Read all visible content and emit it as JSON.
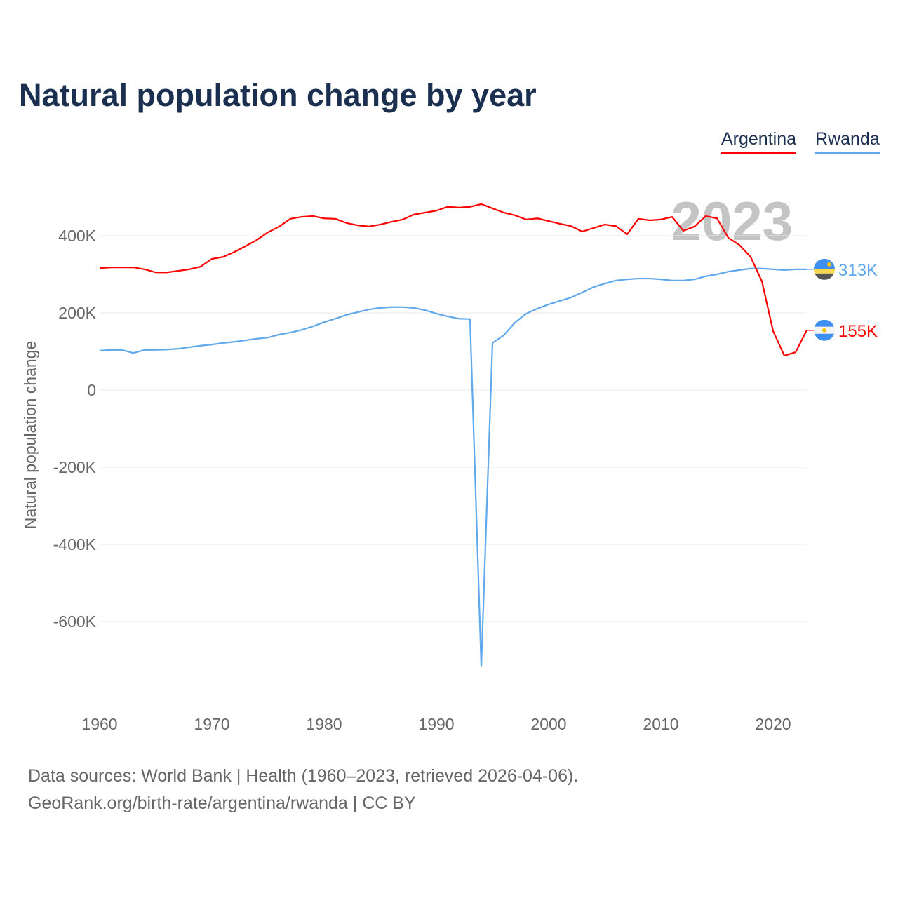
{
  "title": "Natural population change by year",
  "footer": {
    "line1": "Data sources: World Bank | Health (1960–2023, retrieved 2026-04-06).",
    "line2": "GeoRank.org/birth-rate/argentina/rwanda | CC BY"
  },
  "chart_data": {
    "type": "line",
    "title": "Natural population change by year",
    "xlabel": "",
    "ylabel": "Natural population change",
    "year_watermark": "2023",
    "xlim": [
      1960,
      2023
    ],
    "ylim": [
      -800,
      500
    ],
    "x_ticks": [
      1960,
      1970,
      1980,
      1990,
      2000,
      2010,
      2020
    ],
    "y_ticks": [
      400,
      200,
      0,
      -200,
      -400,
      -600
    ],
    "y_tick_labels": [
      "400K",
      "200K",
      "0",
      "-200K",
      "-400K",
      "-600K"
    ],
    "units": "thousands",
    "grid": true,
    "legend_position": "top-right",
    "x": [
      1960,
      1961,
      1962,
      1963,
      1964,
      1965,
      1966,
      1967,
      1968,
      1969,
      1970,
      1971,
      1972,
      1973,
      1974,
      1975,
      1976,
      1977,
      1978,
      1979,
      1980,
      1981,
      1982,
      1983,
      1984,
      1985,
      1986,
      1987,
      1988,
      1989,
      1990,
      1991,
      1992,
      1993,
      1994,
      1995,
      1996,
      1997,
      1998,
      1999,
      2000,
      2001,
      2002,
      2003,
      2004,
      2005,
      2006,
      2007,
      2008,
      2009,
      2010,
      2011,
      2012,
      2013,
      2014,
      2015,
      2016,
      2017,
      2018,
      2019,
      2020,
      2021,
      2022,
      2023
    ],
    "series": [
      {
        "name": "Argentina",
        "color": "#ff0000",
        "end_label": "155K",
        "flag": "argentina-flag",
        "values": [
          316,
          318,
          318,
          318,
          313,
          305,
          305,
          309,
          313,
          320,
          340,
          345,
          358,
          373,
          389,
          409,
          424,
          444,
          449,
          451,
          445,
          444,
          433,
          427,
          424,
          429,
          436,
          442,
          455,
          460,
          465,
          475,
          473,
          475,
          482,
          471,
          460,
          453,
          442,
          445,
          438,
          431,
          425,
          411,
          420,
          429,
          425,
          404,
          444,
          440,
          442,
          449,
          413,
          424,
          451,
          445,
          395,
          376,
          345,
          282,
          153,
          89,
          98,
          155
        ]
      },
      {
        "name": "Rwanda",
        "color": "#5fa8ec",
        "end_label": "313K",
        "flag": "rwanda-flag",
        "values": [
          102,
          104,
          104,
          96,
          104,
          104,
          105,
          107,
          111,
          115,
          118,
          122,
          125,
          129,
          133,
          136,
          144,
          149,
          156,
          165,
          176,
          185,
          195,
          202,
          209,
          213,
          215,
          215,
          213,
          207,
          198,
          191,
          185,
          184,
          -716,
          122,
          142,
          175,
          198,
          211,
          222,
          231,
          240,
          253,
          267,
          276,
          284,
          287,
          289,
          289,
          287,
          284,
          284,
          287,
          295,
          300,
          307,
          311,
          315,
          315,
          313,
          311,
          313,
          313
        ]
      }
    ]
  }
}
